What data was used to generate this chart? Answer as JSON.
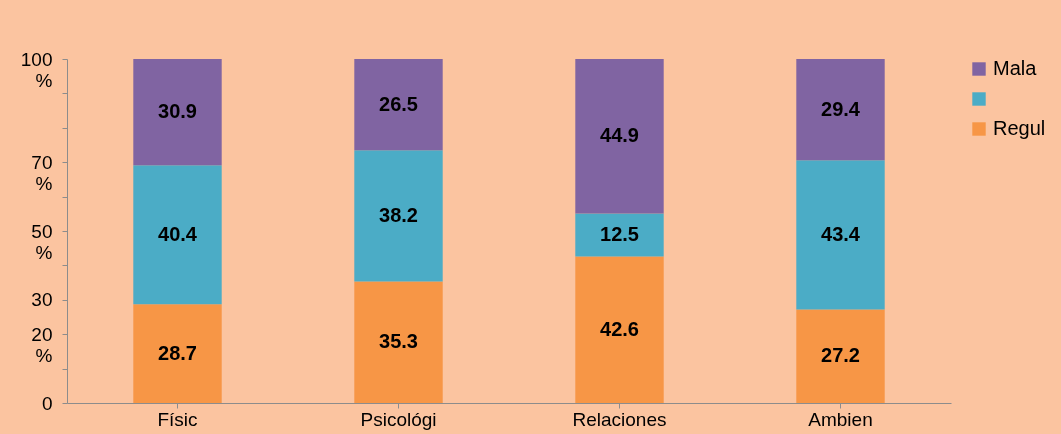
{
  "chart_data": {
    "type": "bar",
    "stacked": true,
    "data_labels": true,
    "legend": "right",
    "grid": false,
    "categories": [
      "Físic",
      "Psicológi",
      "Relaciones",
      "Ambien"
    ],
    "series": [
      {
        "name": "Regul",
        "color": "#f79646",
        "values": [
          28.7,
          35.3,
          42.6,
          27.2
        ]
      },
      {
        "color": "#4bacc6",
        "values": [
          40.4,
          38.2,
          12.5,
          43.4
        ]
      },
      {
        "name": "Mala",
        "color": "#8064a2",
        "values": [
          30.9,
          26.5,
          44.9,
          29.4
        ]
      }
    ],
    "ylim": [
      0,
      100
    ],
    "yticks": [
      0,
      {
        "value": 10,
        "label": null
      },
      {
        "value": 20,
        "label": "20 %"
      },
      {
        "value": 30,
        "label": "30"
      },
      {
        "value": 40,
        "label": null
      },
      {
        "value": 50,
        "label": "50 %"
      },
      {
        "value": 60,
        "label": null
      },
      {
        "value": 70,
        "label": "70 %"
      },
      {
        "value": 80,
        "label": null
      },
      {
        "value": 90,
        "label": null
      },
      {
        "value": 100,
        "label": "100 %"
      }
    ]
  }
}
